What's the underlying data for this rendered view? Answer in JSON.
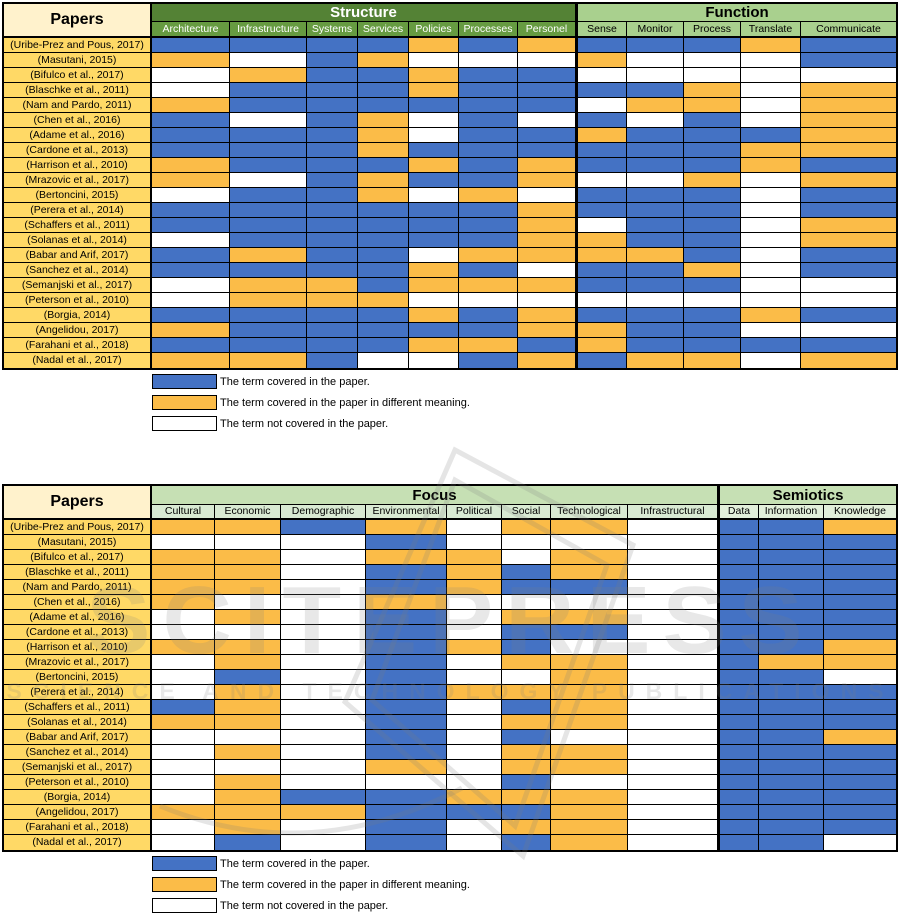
{
  "watermark": {
    "line1": "SCITEPRESS",
    "line2": "SCIENCE AND TECHNOLOGY PUBLICATIONS"
  },
  "cell_colors": {
    "b": "#4472C4",
    "o": "#FBBC48",
    "w": "#FFFFFF"
  },
  "cell_meanings": {
    "b": "covered",
    "o": "covered in different meaning",
    "w": "not covered"
  },
  "header_colors": {
    "structure_band": "#548235",
    "structure_sub": "#669B41",
    "function_band": "#A9D08E",
    "focus_semiotics_band": "#C6E0B4",
    "papers_header_bg": "#FFF2CC",
    "paper_cell_bg": "#FFD966"
  },
  "legend_items": [
    {
      "key": "b",
      "label": "The term covered in the paper."
    },
    {
      "key": "o",
      "label": "The term covered in the paper in different meaning."
    },
    {
      "key": "w",
      "label": "The term not covered in the paper."
    }
  ],
  "table1": {
    "papers_header": "Papers",
    "groups": [
      {
        "label": "Structure",
        "columns": [
          "Architecture",
          "Infrastructure",
          "Systems",
          "Services",
          "Policies",
          "Processes",
          "Personel"
        ]
      },
      {
        "label": "Function",
        "columns": [
          "Sense",
          "Monitor",
          "Process",
          "Translate",
          "Communicate"
        ]
      }
    ],
    "rows": [
      {
        "paper": "(Uribe-Prez and Pous, 2017)",
        "cells": "bbbbobobbbob"
      },
      {
        "paper": "(Masutani, 2015)",
        "cells": "owbowwwowwwb"
      },
      {
        "paper": "(Bifulco et al., 2017)",
        "cells": "wobbobbwwwww"
      },
      {
        "paper": "(Blaschke et al., 2011)",
        "cells": "wbbbobbbbowo"
      },
      {
        "paper": "(Nam and Pardo, 2011)",
        "cells": "obbbbbbwoowo"
      },
      {
        "paper": "(Chen et al., 2016)",
        "cells": "bwbowbwbwbwo"
      },
      {
        "paper": "(Adame et al., 2016)",
        "cells": "bbbowbbobbbo"
      },
      {
        "paper": "(Cardone et al., 2013)",
        "cells": "bbbobbbbbboo"
      },
      {
        "paper": "(Harrison et al., 2010)",
        "cells": "obbbobobbbob"
      },
      {
        "paper": "(Mrazovic et al., 2017)",
        "cells": "owbobbowwowo"
      },
      {
        "paper": "(Bertoncini, 2015)",
        "cells": "wbbowowbbbwb"
      },
      {
        "paper": "(Perera et al., 2014)",
        "cells": "bbbbbbobbbwb"
      },
      {
        "paper": "(Schaffers et al., 2011)",
        "cells": "bbbbbbowbbwo"
      },
      {
        "paper": "(Solanas et al., 2014)",
        "cells": "wbbbbboobbwo"
      },
      {
        "paper": "(Babar and Arif, 2017)",
        "cells": "bobbwoooobwb"
      },
      {
        "paper": "(Sanchez et al., 2014)",
        "cells": "bbbbobwbbowb"
      },
      {
        "paper": "(Semanjski et al., 2017)",
        "cells": "woobooobbbww"
      },
      {
        "paper": "(Peterson et al., 2010)",
        "cells": "wooowwwwwwww"
      },
      {
        "paper": "(Borgia, 2014)",
        "cells": "bbbbobobbbob"
      },
      {
        "paper": "(Angelidou, 2017)",
        "cells": "obbbbboobbww"
      },
      {
        "paper": "(Farahani et al., 2018)",
        "cells": "bbbboobobbbb"
      },
      {
        "paper": "(Nadal et al., 2017)",
        "cells": "oobwwboboowo"
      }
    ]
  },
  "table2": {
    "papers_header": "Papers",
    "groups": [
      {
        "label": "Focus",
        "columns": [
          "Cultural",
          "Economic",
          "Demographic",
          "Environmental",
          "Political",
          "Social",
          "Technological",
          "Infrastructural"
        ]
      },
      {
        "label": "Semiotics",
        "columns": [
          "Data",
          "Information",
          "Knowledge"
        ]
      }
    ],
    "rows": [
      {
        "paper": "(Uribe-Prez and Pous, 2017)",
        "cells": "oobowoowbbo"
      },
      {
        "paper": "(Masutani, 2015)",
        "cells": "wwwbwwwwbbb"
      },
      {
        "paper": "(Bifulco et al., 2017)",
        "cells": "oowoowowbbb"
      },
      {
        "paper": "(Blaschke et al., 2011)",
        "cells": "oowbobowbbb"
      },
      {
        "paper": "(Nam and Pardo, 2011)",
        "cells": "oowbobbwbbb"
      },
      {
        "paper": "(Chen et al., 2016)",
        "cells": "owwowwwwbbb"
      },
      {
        "paper": "(Adame et al., 2016)",
        "cells": "wowbwoowbbb"
      },
      {
        "paper": "(Cardone et al., 2013)",
        "cells": "wwwbwbbwbbb"
      },
      {
        "paper": "(Harrison et al., 2010)",
        "cells": "oowbobwwbbo"
      },
      {
        "paper": "(Mrazovic et al., 2017)",
        "cells": "wowbwoowboo"
      },
      {
        "paper": "(Bertoncini, 2015)",
        "cells": "wbwbwwowbbw"
      },
      {
        "paper": "(Perera et al., 2014)",
        "cells": "wowbooowbbb"
      },
      {
        "paper": "(Schaffers et al., 2011)",
        "cells": "bowbwbowbbb"
      },
      {
        "paper": "(Solanas et al., 2014)",
        "cells": "oowbwoowbbb"
      },
      {
        "paper": "(Babar and Arif, 2017)",
        "cells": "wwwbwbwwbbo"
      },
      {
        "paper": "(Sanchez et al., 2014)",
        "cells": "wowbwoowbbb"
      },
      {
        "paper": "(Semanjski et al., 2017)",
        "cells": "wwwowoowbbb"
      },
      {
        "paper": "(Peterson et al., 2010)",
        "cells": "wowwwbwwbbb"
      },
      {
        "paper": "(Borgia, 2014)",
        "cells": "wobbooowbbb"
      },
      {
        "paper": "(Angelidou, 2017)",
        "cells": "ooobbbowbbb"
      },
      {
        "paper": "(Farahani et al., 2018)",
        "cells": "wowbwoowbbb"
      },
      {
        "paper": "(Nadal et al., 2017)",
        "cells": "wbwbwbowbbw"
      }
    ]
  }
}
